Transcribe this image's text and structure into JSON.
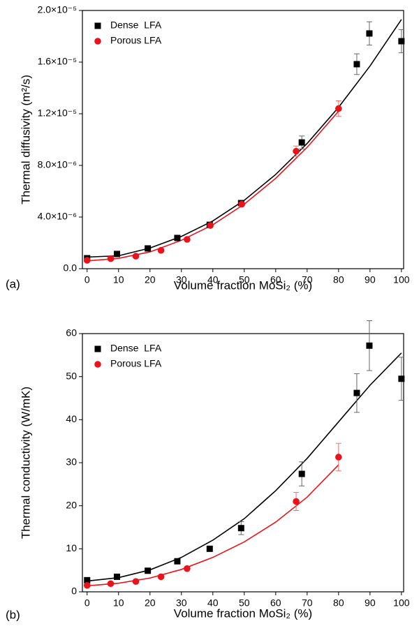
{
  "chart_data": [
    {
      "type": "scatter",
      "panel": "(a)",
      "x_label": "Volume fraction MoSi₂ (%)",
      "y_label": "Thermal diffusivity (m²/s)",
      "xlim": [
        -1.5,
        100.7
      ],
      "xticks": [
        0,
        10,
        20,
        30,
        40,
        50,
        60,
        70,
        80,
        90,
        100
      ],
      "ylim": [
        0,
        2e-05
      ],
      "yticks": [
        {
          "value": 0,
          "label": "0.0"
        },
        {
          "value": 4e-06,
          "label": "4.0×10⁻⁶"
        },
        {
          "value": 8e-06,
          "label": "8.0×10⁻⁶"
        },
        {
          "value": 1.2e-05,
          "label": "1.2×10⁻⁵"
        },
        {
          "value": 1.6e-05,
          "label": "1.6×10⁻⁵"
        },
        {
          "value": 2e-05,
          "label": "2.0×10⁻⁵"
        }
      ],
      "legend": "upper-left",
      "series": [
        {
          "name": "Dense  LFA",
          "color": "#000000",
          "marker": "square",
          "x": [
            0,
            9.5,
            19.3,
            28.7,
            39,
            49,
            68.3,
            85.8,
            89.8,
            100
          ],
          "values": [
            8.1e-07,
            1.14e-06,
            1.57e-06,
            2.38e-06,
            3.4e-06,
            5.08e-06,
            9.78e-06,
            1.584e-05,
            1.822e-05,
            1.762e-05
          ],
          "errors": [
            1e-07,
            1e-07,
            1e-07,
            1e-07,
            1e-07,
            2e-07,
            5e-07,
            8e-07,
            9e-07,
            9e-07
          ]
        },
        {
          "name": "Porous LFA",
          "color": "#e8141b",
          "marker": "circle",
          "x": [
            0,
            7.5,
            15.5,
            23.5,
            31.8,
            39.2,
            49.2,
            66.5,
            80
          ],
          "values": [
            6.5e-07,
            7.8e-07,
            9.7e-07,
            1.42e-06,
            2.27e-06,
            3.35e-06,
            5e-06,
            9.1e-06,
            1.24e-05
          ],
          "errors": [
            1e-07,
            1e-07,
            1e-07,
            1e-07,
            1e-07,
            1e-07,
            1e-07,
            4e-07,
            6e-07
          ]
        }
      ],
      "fits": [
        {
          "color": "#000000",
          "x": [
            0,
            10,
            20,
            30,
            40,
            50,
            60,
            70,
            80,
            90,
            100
          ],
          "values": [
            9e-07,
            1e-06,
            1.6e-06,
            2.5e-06,
            3.7e-06,
            5.3e-06,
            7.3e-06,
            9.7e-06,
            1.25e-05,
            1.57e-05,
            1.93e-05
          ]
        },
        {
          "color": "#e8141b",
          "x": [
            0,
            10,
            20,
            30,
            40,
            50,
            60,
            70,
            80
          ],
          "values": [
            6e-07,
            8e-07,
            1.3e-06,
            2.2e-06,
            3.4e-06,
            5e-06,
            7e-06,
            9.4e-06,
            1.22e-05
          ]
        }
      ]
    },
    {
      "type": "scatter",
      "panel": "(b)",
      "x_label": "Volume fraction MoSi₂ (%)",
      "y_label": "Thermal conductivity (W/mK)",
      "xlim": [
        -1.5,
        100.7
      ],
      "xticks": [
        0,
        10,
        20,
        30,
        40,
        50,
        60,
        70,
        80,
        90,
        100
      ],
      "ylim": [
        0,
        60
      ],
      "yticks": [
        0,
        10,
        20,
        30,
        40,
        50,
        60
      ],
      "legend": "upper-left",
      "series": [
        {
          "name": "Dense  LFA",
          "color": "#000000",
          "marker": "square",
          "x": [
            0,
            9.5,
            19.3,
            28.7,
            39,
            49,
            68.3,
            85.8,
            89.8,
            100
          ],
          "values": [
            2.7,
            3.5,
            4.9,
            7.1,
            10,
            14.8,
            27.4,
            46.2,
            57.2,
            49.5
          ],
          "errors": [
            0.5,
            0.4,
            0.4,
            0.5,
            0.6,
            1.5,
            2.8,
            4.5,
            5.8,
            5
          ]
        },
        {
          "name": "Porous LFA",
          "color": "#e8141b",
          "marker": "circle",
          "x": [
            0,
            7.5,
            15.5,
            23.5,
            31.8,
            66.5,
            80
          ],
          "values": [
            1.5,
            1.9,
            2.4,
            3.5,
            5.4,
            21,
            31.3
          ],
          "errors": [
            0.3,
            0.3,
            0.3,
            0.3,
            0.3,
            2.1,
            3.2
          ]
        }
      ],
      "fits": [
        {
          "color": "#000000",
          "x": [
            0,
            10,
            20,
            30,
            40,
            50,
            60,
            70,
            80,
            90,
            100
          ],
          "values": [
            2.5,
            3.3,
            5.1,
            8,
            12,
            17,
            23.5,
            31,
            39.5,
            48,
            55.5
          ]
        },
        {
          "color": "#e8141b",
          "x": [
            0,
            10,
            20,
            30,
            40,
            50,
            60,
            70,
            80
          ],
          "values": [
            1.4,
            2,
            3.2,
            5.2,
            8,
            11.6,
            16.2,
            22,
            29.5
          ]
        }
      ]
    }
  ]
}
